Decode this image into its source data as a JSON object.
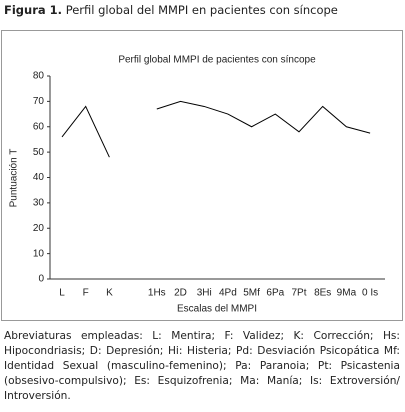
{
  "figure": {
    "label": "Figura 1.",
    "title": "Perfil global del MMPI en pacientes con síncope"
  },
  "chart_data": {
    "type": "line",
    "title": "Perfil global MMPI de pacientes con síncope",
    "x_label": "Escalas del MMPI",
    "y_label": "Puntuación T",
    "categories": [
      "L",
      "F",
      "K",
      null,
      "1Hs",
      "2D",
      "3Hi",
      "4Pd",
      "5Mf",
      "6Pa",
      "7Pt",
      "8Es",
      "9Ma",
      "0 Is"
    ],
    "series": [
      {
        "name": "MMPI",
        "color": "#000000",
        "values": [
          56,
          68,
          48,
          null,
          67,
          70,
          68,
          65,
          60,
          65,
          58,
          68,
          60,
          57.5
        ]
      }
    ],
    "ylim": [
      0,
      80
    ],
    "yticks": [
      0,
      10,
      20,
      30,
      40,
      50,
      60,
      70,
      80
    ],
    "grid": false
  },
  "footnote": "Abreviaturas empleadas: L: Mentira; F: Validez; K: Corrección; Hs: Hipocondriasis; D: Depresión; Hi: Histeria; Pd: Desviación Psicopática Mf: Identidad Sexual (masculino-femenino); Pa: Paranoia; Pt: Psicastenia (obsesivo-compulsivo); Es: Esquizofrenia; Ma: Manía; Is: Extroversión/ Introversión."
}
